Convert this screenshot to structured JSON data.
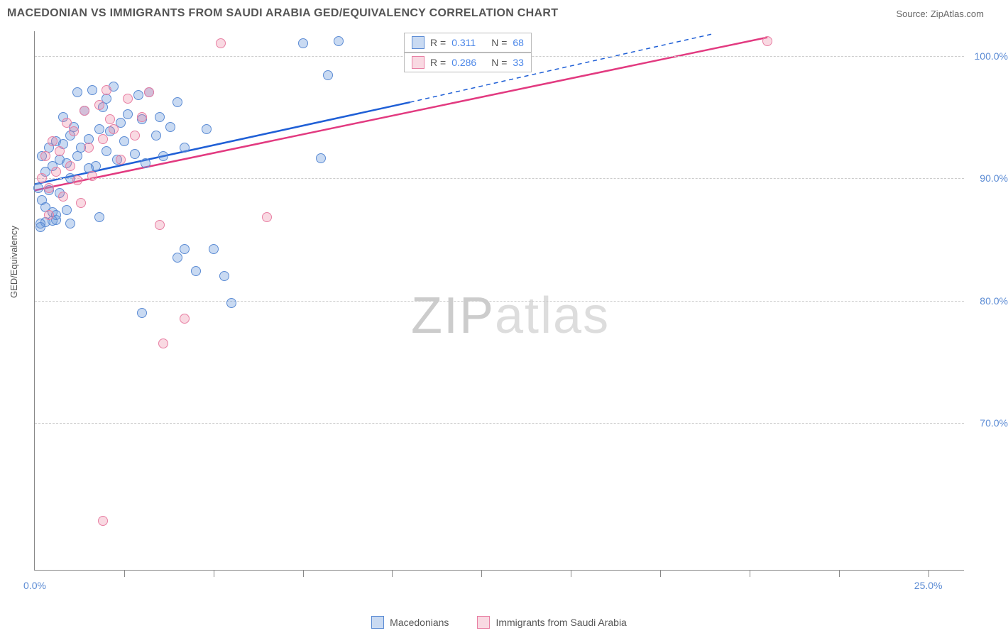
{
  "header": {
    "title": "MACEDONIAN VS IMMIGRANTS FROM SAUDI ARABIA GED/EQUIVALENCY CORRELATION CHART",
    "source_prefix": "Source: ",
    "source_name": "ZipAtlas.com"
  },
  "chart": {
    "type": "scatter",
    "ylabel": "GED/Equivalency",
    "background_color": "#ffffff",
    "grid_color": "#cccccc",
    "axis_color": "#888888",
    "xlim": [
      0,
      26
    ],
    "ylim": [
      58,
      102
    ],
    "yticks": [
      {
        "v": 70,
        "label": "70.0%"
      },
      {
        "v": 80,
        "label": "80.0%"
      },
      {
        "v": 90,
        "label": "90.0%"
      },
      {
        "v": 100,
        "label": "100.0%"
      }
    ],
    "xticks": [
      {
        "v": 0,
        "label": "0.0%"
      },
      {
        "v": 25,
        "label": "25.0%"
      }
    ],
    "xtick_marks": [
      2.5,
      5,
      7.5,
      10,
      12.5,
      15,
      17.5,
      20,
      22.5,
      25
    ],
    "marker_radius": 7,
    "series": [
      {
        "name": "Macedonians",
        "fill": "rgba(99,148,219,0.35)",
        "stroke": "#5b8bd4",
        "r_value": "0.311",
        "n_value": "68",
        "trend": {
          "x1": 0,
          "y1": 89.5,
          "x2": 10.5,
          "y2": 96.2,
          "color": "#1f5fd6",
          "width": 2.5,
          "dash_ext_x": 19,
          "dash_ext_y": 101.8
        },
        "points": [
          [
            0.1,
            89.2
          ],
          [
            0.2,
            91.8
          ],
          [
            0.2,
            88.2
          ],
          [
            0.3,
            90.5
          ],
          [
            0.3,
            87.6
          ],
          [
            0.4,
            92.5
          ],
          [
            0.4,
            89.0
          ],
          [
            0.5,
            91.0
          ],
          [
            0.5,
            87.2
          ],
          [
            0.6,
            93.0
          ],
          [
            0.6,
            86.6
          ],
          [
            0.7,
            91.5
          ],
          [
            0.7,
            88.8
          ],
          [
            0.8,
            92.8
          ],
          [
            0.8,
            95.0
          ],
          [
            0.9,
            91.2
          ],
          [
            0.9,
            87.4
          ],
          [
            1.0,
            93.5
          ],
          [
            1.0,
            90.0
          ],
          [
            1.1,
            94.2
          ],
          [
            1.2,
            91.8
          ],
          [
            1.2,
            97.0
          ],
          [
            1.3,
            92.5
          ],
          [
            1.4,
            95.5
          ],
          [
            1.5,
            93.2
          ],
          [
            1.5,
            90.8
          ],
          [
            1.6,
            97.2
          ],
          [
            1.7,
            91.0
          ],
          [
            1.8,
            94.0
          ],
          [
            1.8,
            86.8
          ],
          [
            1.9,
            95.8
          ],
          [
            2.0,
            92.2
          ],
          [
            2.0,
            96.5
          ],
          [
            2.1,
            93.8
          ],
          [
            2.2,
            97.5
          ],
          [
            2.3,
            91.5
          ],
          [
            2.4,
            94.5
          ],
          [
            2.5,
            93.0
          ],
          [
            2.6,
            95.2
          ],
          [
            2.8,
            92.0
          ],
          [
            2.9,
            96.8
          ],
          [
            3.0,
            94.8
          ],
          [
            3.1,
            91.2
          ],
          [
            3.2,
            97.0
          ],
          [
            3.4,
            93.5
          ],
          [
            3.5,
            95.0
          ],
          [
            3.6,
            91.8
          ],
          [
            3.8,
            94.2
          ],
          [
            4.0,
            96.2
          ],
          [
            4.2,
            92.5
          ],
          [
            4.5,
            82.4
          ],
          [
            4.2,
            84.2
          ],
          [
            4.0,
            83.5
          ],
          [
            4.8,
            94.0
          ],
          [
            5.0,
            84.2
          ],
          [
            5.3,
            82.0
          ],
          [
            5.5,
            79.8
          ],
          [
            3.0,
            79.0
          ],
          [
            0.5,
            86.5
          ],
          [
            0.6,
            87.0
          ],
          [
            8.5,
            101.2
          ],
          [
            8.2,
            98.4
          ],
          [
            8.0,
            91.6
          ],
          [
            7.5,
            101.0
          ],
          [
            1.0,
            86.3
          ],
          [
            0.3,
            86.4
          ],
          [
            0.15,
            86.3
          ],
          [
            0.15,
            86.0
          ]
        ]
      },
      {
        "name": "Immigrants from Saudi Arabia",
        "fill": "rgba(235,130,160,0.30)",
        "stroke": "#e87fa3",
        "r_value": "0.286",
        "n_value": "33",
        "trend": {
          "x1": 0,
          "y1": 89.0,
          "x2": 20.5,
          "y2": 101.5,
          "color": "#e23a80",
          "width": 2.5
        },
        "points": [
          [
            0.2,
            90.0
          ],
          [
            0.3,
            91.8
          ],
          [
            0.4,
            89.2
          ],
          [
            0.5,
            93.0
          ],
          [
            0.6,
            90.5
          ],
          [
            0.7,
            92.2
          ],
          [
            0.8,
            88.5
          ],
          [
            0.9,
            94.5
          ],
          [
            1.0,
            91.0
          ],
          [
            1.1,
            93.8
          ],
          [
            1.2,
            89.8
          ],
          [
            1.4,
            95.5
          ],
          [
            1.5,
            92.5
          ],
          [
            1.6,
            90.2
          ],
          [
            1.8,
            96.0
          ],
          [
            1.9,
            93.2
          ],
          [
            2.0,
            97.2
          ],
          [
            2.2,
            94.0
          ],
          [
            2.4,
            91.5
          ],
          [
            2.6,
            96.5
          ],
          [
            2.8,
            93.5
          ],
          [
            3.0,
            95.0
          ],
          [
            3.2,
            97.0
          ],
          [
            3.5,
            86.2
          ],
          [
            3.6,
            76.5
          ],
          [
            4.2,
            78.5
          ],
          [
            5.2,
            101.0
          ],
          [
            6.5,
            86.8
          ],
          [
            1.9,
            62.0
          ],
          [
            20.5,
            101.2
          ],
          [
            1.3,
            88.0
          ],
          [
            0.4,
            87.0
          ],
          [
            2.1,
            94.8
          ]
        ]
      }
    ],
    "stats_box": {
      "r_label": "R =",
      "n_label": "N =",
      "value_color": "#4a86e8"
    },
    "bottom_legend": {
      "series1_label": "Macedonians",
      "series2_label": "Immigrants from Saudi Arabia"
    },
    "watermark": {
      "zip": "ZIP",
      "atlas": "atlas"
    }
  }
}
